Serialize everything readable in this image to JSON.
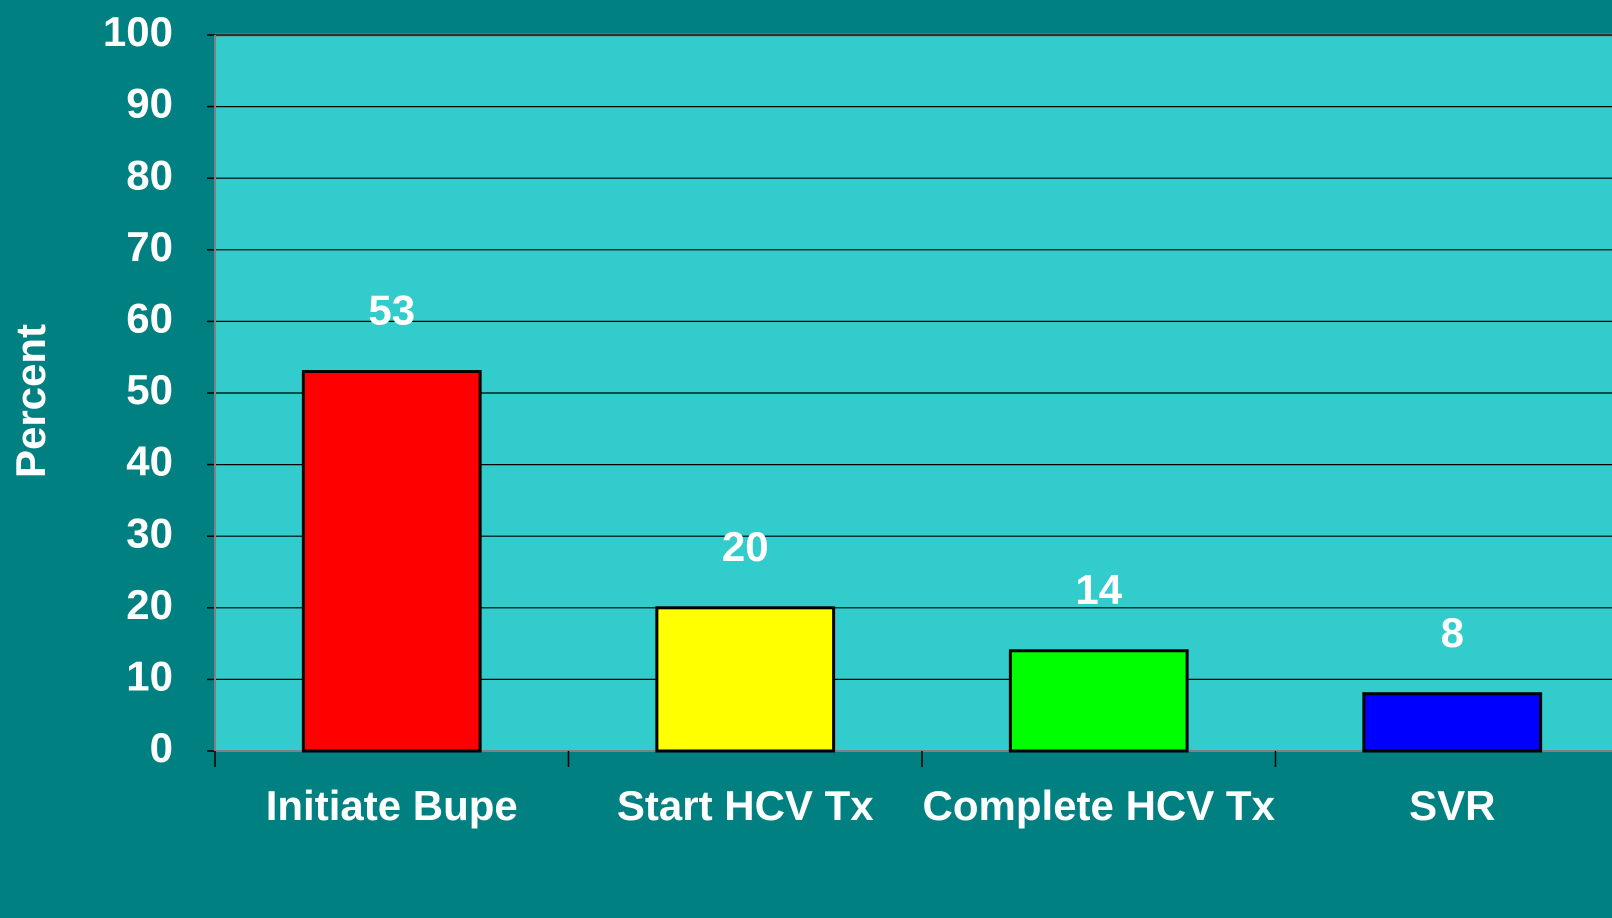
{
  "chart_data": {
    "type": "bar",
    "y_label": "Percent",
    "categories": [
      "Initiate Bupe",
      "Start HCV Tx",
      "Complete HCV Tx",
      "SVR"
    ],
    "values": [
      53,
      20,
      14,
      8
    ],
    "colors": [
      "#ff0000",
      "#ffff00",
      "#00ff00",
      "#0000ff"
    ],
    "ylim": [
      0,
      100
    ],
    "yticks": [
      0,
      10,
      20,
      30,
      40,
      50,
      60,
      70,
      80,
      90,
      100
    ],
    "grid": true
  }
}
